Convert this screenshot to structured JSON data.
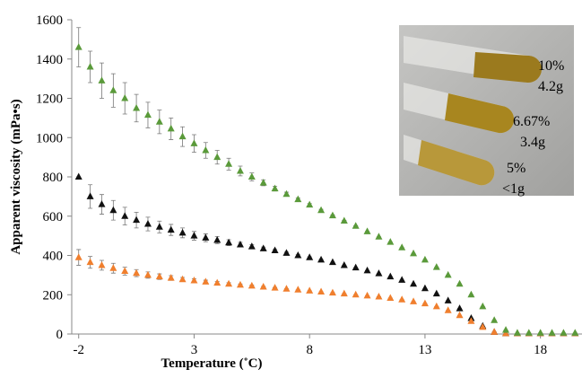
{
  "chart_data": {
    "type": "scatter",
    "x_label": "Temperature (˚C)",
    "y_label": "Apparent viscosity (mPa•s)",
    "x": [
      -2,
      -1.5,
      -1,
      -0.5,
      0,
      0.5,
      1,
      1.5,
      2,
      2.5,
      3,
      3.5,
      4,
      4.5,
      5,
      5.5,
      6,
      6.5,
      7,
      7.5,
      8,
      8.5,
      9,
      9.5,
      10,
      10.5,
      11,
      11.5,
      12,
      12.5,
      13,
      13.5,
      14,
      14.5,
      15,
      15.5,
      16,
      16.5,
      17,
      17.5,
      18,
      18.5,
      19,
      19.5
    ],
    "xlim": [
      -2.3,
      19.8
    ],
    "xticks": [
      -2,
      3,
      8,
      13,
      18
    ],
    "ylim": [
      0,
      1600
    ],
    "yticks": [
      0,
      200,
      400,
      600,
      800,
      1000,
      1200,
      1400,
      1600
    ],
    "marker": "triangle",
    "series": [
      {
        "color": "#111111",
        "values": [
          800,
          700,
          660,
          630,
          600,
          580,
          560,
          545,
          530,
          515,
          500,
          490,
          478,
          465,
          455,
          445,
          435,
          425,
          412,
          400,
          390,
          378,
          365,
          350,
          338,
          323,
          308,
          292,
          275,
          255,
          232,
          205,
          170,
          130,
          80,
          40,
          10,
          3,
          3,
          3,
          3,
          3,
          3,
          3
        ],
        "errors": [
          0,
          60,
          50,
          50,
          45,
          40,
          35,
          30,
          28,
          25,
          22,
          20,
          18,
          15,
          12,
          10,
          8,
          6,
          5,
          4,
          3,
          2,
          0,
          0,
          0,
          0,
          0,
          0,
          0,
          0,
          0,
          0,
          0,
          0,
          0,
          0,
          0,
          0,
          0,
          0,
          0,
          0,
          0,
          0
        ]
      },
      {
        "color": "#f07f2e",
        "values": [
          390,
          365,
          350,
          335,
          320,
          310,
          300,
          292,
          285,
          278,
          272,
          266,
          260,
          255,
          250,
          245,
          240,
          235,
          230,
          225,
          220,
          215,
          210,
          205,
          200,
          195,
          190,
          183,
          175,
          165,
          155,
          140,
          120,
          95,
          65,
          35,
          10,
          3,
          3,
          3,
          3,
          3,
          3,
          3
        ],
        "errors": [
          40,
          30,
          25,
          25,
          20,
          18,
          16,
          14,
          12,
          10,
          9,
          8,
          7,
          6,
          5,
          4,
          3,
          2,
          0,
          0,
          0,
          0,
          0,
          0,
          0,
          0,
          0,
          0,
          0,
          0,
          0,
          0,
          0,
          0,
          0,
          0,
          0,
          0,
          0,
          0,
          0,
          0,
          0,
          0
        ]
      },
      {
        "color": "#5a9a3a",
        "values": [
          1460,
          1360,
          1290,
          1240,
          1200,
          1150,
          1115,
          1080,
          1045,
          1005,
          970,
          935,
          900,
          865,
          830,
          800,
          770,
          740,
          712,
          685,
          658,
          630,
          603,
          576,
          550,
          522,
          495,
          468,
          440,
          410,
          378,
          340,
          300,
          255,
          200,
          140,
          70,
          20,
          5,
          5,
          5,
          5,
          5,
          5
        ],
        "errors": [
          100,
          80,
          90,
          85,
          80,
          70,
          65,
          60,
          55,
          50,
          45,
          40,
          35,
          30,
          25,
          20,
          15,
          12,
          10,
          8,
          6,
          5,
          4,
          3,
          2,
          0,
          0,
          0,
          0,
          0,
          0,
          0,
          0,
          0,
          0,
          0,
          0,
          0,
          0,
          0,
          0,
          0,
          0,
          0
        ]
      }
    ],
    "annotations": [
      "10%",
      "4.2g",
      "6.67%",
      "3.4g",
      "5%",
      "<1g"
    ]
  }
}
